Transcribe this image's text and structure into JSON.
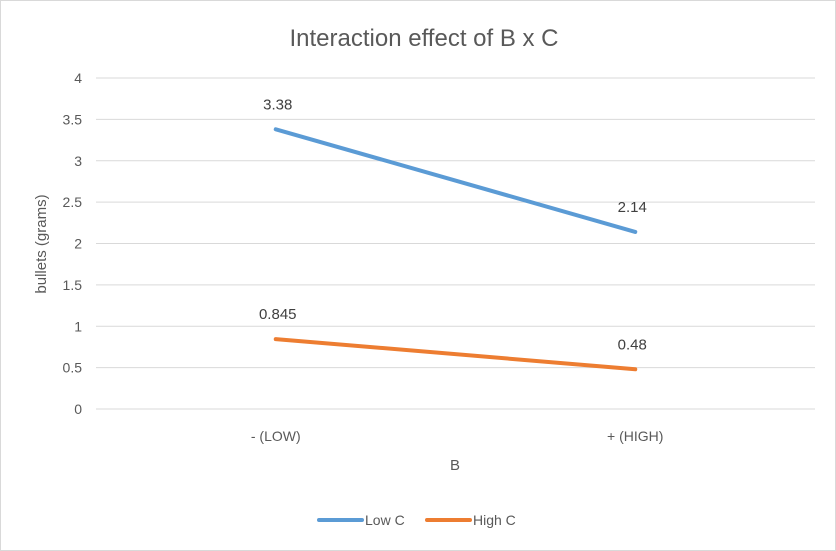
{
  "chart_data": {
    "type": "line",
    "title": "Interaction effect of B x C",
    "xlabel": "B",
    "ylabel": "bullets (grams)",
    "categories": [
      "- (LOW)",
      "+ (HIGH)"
    ],
    "ylim": [
      0,
      4
    ],
    "yticks": [
      "0",
      "0.5",
      "1",
      "1.5",
      "2",
      "2.5",
      "3",
      "3.5",
      "4"
    ],
    "grid": true,
    "legend_position": "bottom",
    "series": [
      {
        "name": "Low C",
        "color": "#5b9bd5",
        "values": [
          3.38,
          2.14
        ],
        "labels": [
          "3.38",
          "2.14"
        ]
      },
      {
        "name": "High C",
        "color": "#ed7d31",
        "values": [
          0.845,
          0.48
        ],
        "labels": [
          "0.845",
          "0.48"
        ]
      }
    ]
  }
}
